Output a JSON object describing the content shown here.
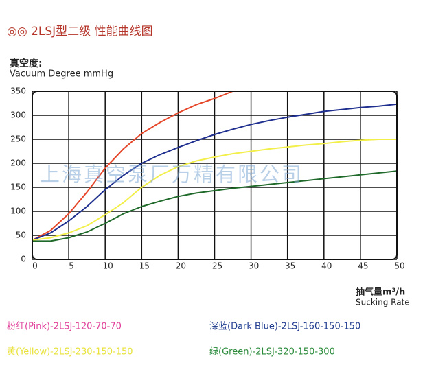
{
  "chart_data": {
    "type": "line",
    "title": "◎◎ 2LSJ型二级  性能曲线图",
    "y_label_cn": "真空度:",
    "y_label": "Vacuum Degree mmHg",
    "x_label_cn": "抽气量m³/h",
    "x_label": "Sucking Rate",
    "watermark": "上海真空泵厂万精有限公司",
    "x": [
      0,
      2.5,
      5,
      7.5,
      10,
      12.5,
      15,
      17.5,
      20,
      22.5,
      25,
      27.5,
      30,
      32.5,
      35,
      37.5,
      40,
      42.5,
      45,
      47.5,
      50
    ],
    "series": [
      {
        "name": "粉红(Pink)-2LSJ-120-70-70",
        "color": "#e5472a",
        "legend_color": "#e0409a",
        "values": [
          40,
          60,
          95,
          140,
          190,
          230,
          262,
          285,
          305,
          322,
          335,
          350,
          null,
          null,
          null,
          null,
          null,
          null,
          null,
          null,
          null
        ]
      },
      {
        "name": "深蓝(Dark Blue)-2LSJ-160-150-150",
        "color": "#1f2f8f",
        "legend_color": "#1f3c8f",
        "values": [
          40,
          55,
          80,
          110,
          145,
          175,
          200,
          218,
          233,
          247,
          260,
          271,
          281,
          289,
          296,
          302,
          308,
          312,
          316,
          319,
          323
        ]
      },
      {
        "name": "黄(Yellow)-2LSJ-230-150-150",
        "color": "#f2ef4a",
        "legend_color": "#e8e23a",
        "values": [
          40,
          45,
          55,
          70,
          93,
          118,
          150,
          175,
          193,
          205,
          213,
          220,
          225,
          230,
          234,
          238,
          241,
          245,
          248,
          250,
          250
        ]
      },
      {
        "name": "绿(Green)-2LSJ-320-150-300",
        "color": "#1f6a2a",
        "legend_color": "#2a8a3a",
        "values": [
          38,
          38,
          45,
          57,
          75,
          95,
          110,
          121,
          131,
          138,
          143,
          148,
          152,
          156,
          160,
          164,
          168,
          172,
          176,
          180,
          184
        ]
      }
    ],
    "xlim": [
      0,
      50
    ],
    "xticks": [
      0,
      5,
      10,
      15,
      20,
      25,
      30,
      35,
      40,
      45,
      50
    ],
    "ylim": [
      0,
      350
    ],
    "yticks": [
      0,
      50,
      100,
      150,
      200,
      250,
      300,
      350
    ],
    "grid": true
  }
}
